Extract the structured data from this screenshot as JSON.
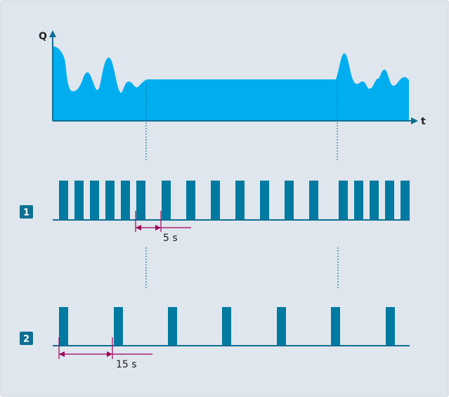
{
  "colors": {
    "background": "#dfe6ed",
    "border": "#c9d2da",
    "flow_fill": "#00aeef",
    "pulse": "#007aa0",
    "axis": "#0e6f93",
    "guide": "#0e6f93",
    "dimension": "#a1005c",
    "badge": "#0e6f93",
    "badge_text": "#ffffff",
    "text": "#222222"
  },
  "axes": {
    "y_label": "Q",
    "x_label": "t"
  },
  "pulse_rows": [
    {
      "badge": "1",
      "interval_label": "5 s"
    },
    {
      "badge": "2",
      "interval_label": "15 s"
    }
  ]
}
